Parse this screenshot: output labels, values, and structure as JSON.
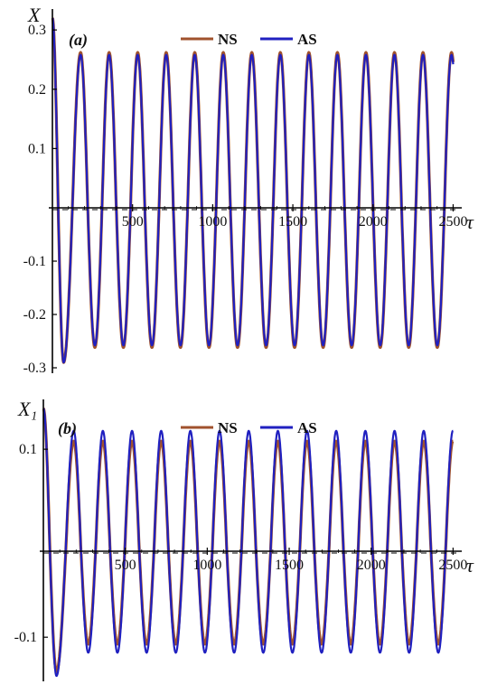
{
  "chart_data": [
    {
      "type": "line",
      "panel_label": "(a)",
      "ylabel": "X",
      "xlabel": "τ",
      "xlim": [
        -30,
        2520
      ],
      "ylim": [
        -0.3,
        0.32
      ],
      "x_ticks": [
        "500",
        "1000",
        "1500",
        "2000",
        "2500"
      ],
      "x_tick_values": [
        500,
        1000,
        1500,
        2000,
        2500
      ],
      "y_ticks": [
        "0.3",
        "0.2",
        "0.1",
        "-0.1",
        "-0.2",
        "-0.3"
      ],
      "y_tick_values": [
        0.3,
        0.2,
        0.1,
        -0.1,
        -0.2,
        -0.3
      ],
      "legend_position": "top-center",
      "series": [
        {
          "name": "NS",
          "color": "#a0522d",
          "amplitude": 0.262,
          "period": 178,
          "phase_peak": 176,
          "transient": {
            "start": 0.32,
            "min": -0.29,
            "min_at": 70
          }
        },
        {
          "name": "AS",
          "color": "#2020c0",
          "amplitude": 0.258,
          "period": 178,
          "phase_peak": 176,
          "transient": {
            "start": 0.32,
            "min": -0.29,
            "min_at": 70
          }
        }
      ]
    },
    {
      "type": "line",
      "panel_label": "(b)",
      "ylabel": "X₁",
      "xlabel": "τ",
      "xlim": [
        -30,
        2520
      ],
      "ylim": [
        -0.145,
        0.14
      ],
      "x_ticks": [
        "500",
        "1000",
        "1500",
        "2000",
        "2500"
      ],
      "x_tick_values": [
        500,
        1000,
        1500,
        2000,
        2500
      ],
      "y_ticks": [
        "0.1",
        "-0.1"
      ],
      "y_tick_values": [
        0.1,
        -0.1
      ],
      "legend_position": "top-center",
      "series": [
        {
          "name": "NS",
          "color": "#a0522d",
          "amplitude": 0.108,
          "period": 178,
          "phase_peak": 185,
          "transient": {
            "start": 0.14,
            "min": -0.14,
            "min_at": 80
          }
        },
        {
          "name": "AS",
          "color": "#2020c0",
          "amplitude": 0.118,
          "period": 178,
          "phase_peak": 185,
          "transient": {
            "start": 0.14,
            "min": -0.145,
            "min_at": 80
          }
        }
      ]
    }
  ]
}
